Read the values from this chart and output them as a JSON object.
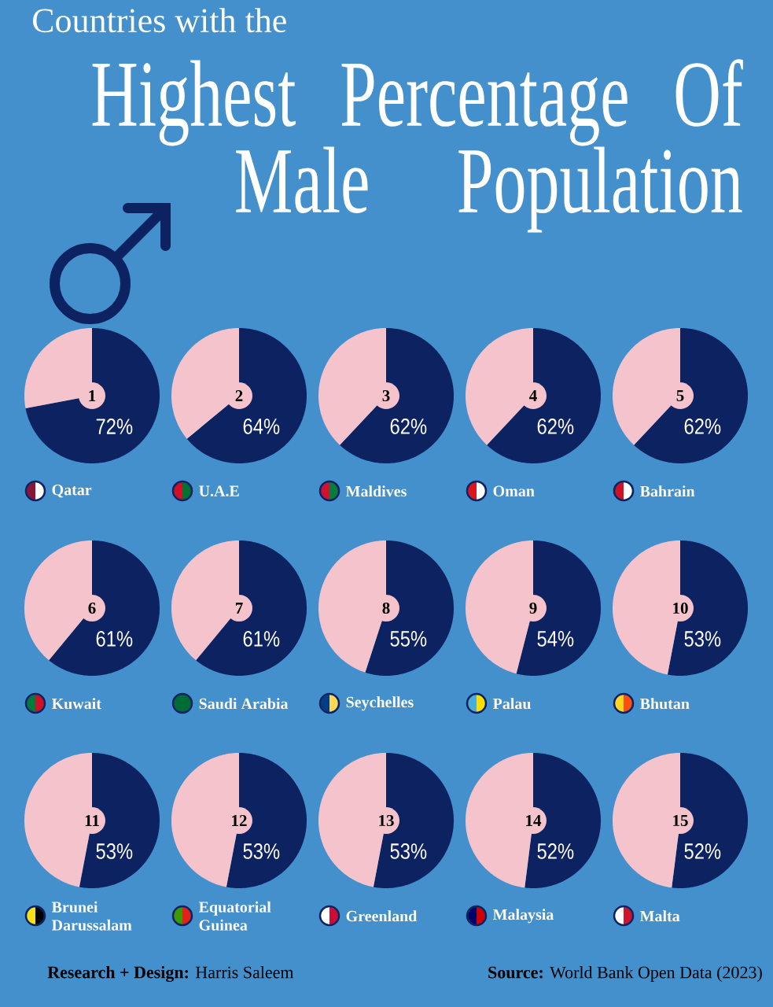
{
  "chart_data": [
    {
      "type": "other",
      "subtitle": "Countries with the",
      "title": "Highest Percentage Of Male Population"
    },
    {
      "type": "pie",
      "title": "Qatar",
      "annotations": [
        "1"
      ],
      "categories": [
        null,
        null
      ],
      "values": [
        72,
        28
      ],
      "colors": [
        "#0d2260",
        "#f5c3cb"
      ],
      "value_labels": [
        "72%",
        null
      ]
    },
    {
      "type": "pie",
      "title": "U.A.E",
      "annotations": [
        "2"
      ],
      "categories": [
        null,
        null
      ],
      "values": [
        64,
        36
      ],
      "colors": [
        "#0d2260",
        "#f5c3cb"
      ],
      "value_labels": [
        "64%",
        null
      ]
    },
    {
      "type": "pie",
      "title": "Maldives",
      "annotations": [
        "3"
      ],
      "categories": [
        null,
        null
      ],
      "values": [
        62,
        38
      ],
      "colors": [
        "#0d2260",
        "#f5c3cb"
      ],
      "value_labels": [
        "62%",
        null
      ]
    },
    {
      "type": "pie",
      "title": "Oman",
      "annotations": [
        "4"
      ],
      "categories": [
        null,
        null
      ],
      "values": [
        62,
        38
      ],
      "colors": [
        "#0d2260",
        "#f5c3cb"
      ],
      "value_labels": [
        "62%",
        null
      ]
    },
    {
      "type": "pie",
      "title": "Bahrain",
      "annotations": [
        "5"
      ],
      "categories": [
        null,
        null
      ],
      "values": [
        62,
        38
      ],
      "colors": [
        "#0d2260",
        "#f5c3cb"
      ],
      "value_labels": [
        "62%",
        null
      ]
    },
    {
      "type": "pie",
      "title": "Kuwait",
      "annotations": [
        "6"
      ],
      "categories": [
        null,
        null
      ],
      "values": [
        61,
        39
      ],
      "colors": [
        "#0d2260",
        "#f5c3cb"
      ],
      "value_labels": [
        "61%",
        null
      ]
    },
    {
      "type": "pie",
      "title": "Saudi Arabia",
      "annotations": [
        "7"
      ],
      "categories": [
        null,
        null
      ],
      "values": [
        61,
        39
      ],
      "colors": [
        "#0d2260",
        "#f5c3cb"
      ],
      "value_labels": [
        "61%",
        null
      ]
    },
    {
      "type": "pie",
      "title": "Seychelles",
      "annotations": [
        "8"
      ],
      "categories": [
        null,
        null
      ],
      "values": [
        55,
        45
      ],
      "colors": [
        "#0d2260",
        "#f5c3cb"
      ],
      "value_labels": [
        "55%",
        null
      ]
    },
    {
      "type": "pie",
      "title": "Palau",
      "annotations": [
        "9"
      ],
      "categories": [
        null,
        null
      ],
      "values": [
        54,
        46
      ],
      "colors": [
        "#0d2260",
        "#f5c3cb"
      ],
      "value_labels": [
        "54%",
        null
      ]
    },
    {
      "type": "pie",
      "title": "Bhutan",
      "annotations": [
        "10"
      ],
      "categories": [
        null,
        null
      ],
      "values": [
        53,
        47
      ],
      "colors": [
        "#0d2260",
        "#f5c3cb"
      ],
      "value_labels": [
        "53%",
        null
      ]
    },
    {
      "type": "pie",
      "title": "Brunei Darussalam",
      "annotations": [
        "11"
      ],
      "categories": [
        null,
        null
      ],
      "values": [
        53,
        47
      ],
      "colors": [
        "#0d2260",
        "#f5c3cb"
      ],
      "value_labels": [
        "53%",
        null
      ]
    },
    {
      "type": "pie",
      "title": "Equatorial Guinea",
      "annotations": [
        "12"
      ],
      "categories": [
        null,
        null
      ],
      "values": [
        53,
        47
      ],
      "colors": [
        "#0d2260",
        "#f5c3cb"
      ],
      "value_labels": [
        "53%",
        null
      ]
    },
    {
      "type": "pie",
      "title": "Greenland",
      "annotations": [
        "13"
      ],
      "categories": [
        null,
        null
      ],
      "values": [
        53,
        47
      ],
      "colors": [
        "#0d2260",
        "#f5c3cb"
      ],
      "value_labels": [
        "53%",
        null
      ]
    },
    {
      "type": "pie",
      "title": "Malaysia",
      "annotations": [
        "14"
      ],
      "categories": [
        null,
        null
      ],
      "values": [
        52,
        48
      ],
      "colors": [
        "#0d2260",
        "#f5c3cb"
      ],
      "value_labels": [
        "52%",
        null
      ]
    },
    {
      "type": "pie",
      "title": "Malta",
      "annotations": [
        "15"
      ],
      "categories": [
        null,
        null
      ],
      "values": [
        52,
        48
      ],
      "colors": [
        "#0d2260",
        "#f5c3cb"
      ],
      "value_labels": [
        "52%",
        null
      ]
    },
    {
      "type": "other",
      "annotations": [
        "**Research + Design:**  Harris Saleem",
        "**Source:**  World Bank Open Data (2023)"
      ]
    }
  ]
}
